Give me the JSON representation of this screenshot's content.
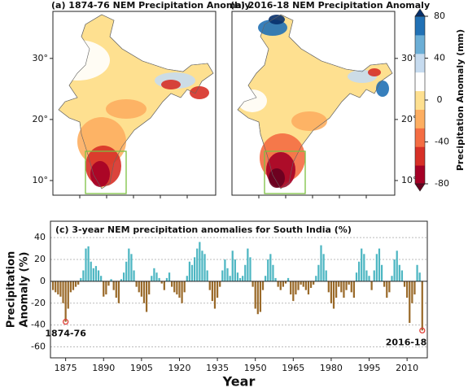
{
  "chart_data": [
    {
      "type": "map",
      "title": "(a) 1874-76 NEM Precipitation Anomaly",
      "ylim": [
        7.6,
        37.7
      ],
      "ytick_side": "left",
      "yticks": [
        {
          "value": 10,
          "label": "10°"
        },
        {
          "value": 20,
          "label": "20°"
        },
        {
          "value": 30,
          "label": "30°"
        }
      ]
    },
    {
      "type": "map",
      "title": "(b) 2016-18 NEM Precipitation Anomaly",
      "ylim": [
        7.6,
        37.7
      ],
      "ytick_side": "right",
      "yticks": [
        {
          "value": 10,
          "label": "10°"
        },
        {
          "value": 20,
          "label": "20°"
        },
        {
          "value": 30,
          "label": "30°"
        }
      ]
    },
    {
      "type": "colorbar",
      "label": "Precipitation Anomaly (mm)",
      "ylim": [
        -80,
        80
      ],
      "yticks": [
        -80,
        -40,
        0,
        40,
        80
      ],
      "colors": [
        "#67001f",
        "#a50026",
        "#d73027",
        "#f46d43",
        "#fdae61",
        "#fee090",
        "#ffffff",
        "#c6dbef",
        "#6baed6",
        "#2171b5",
        "#08306b"
      ]
    },
    {
      "type": "bar",
      "title": "(c) 3-year NEM precipitation anomalies for South India (%)",
      "ylabel": [
        "Precipitation",
        "Anomaly (%)"
      ],
      "xlabel": "Year",
      "positive_color": "#4db6c2",
      "negative_color": "#9a6a2a",
      "marker_color": "#e0413a",
      "grid": true,
      "xlim": [
        1869,
        2018
      ],
      "xticks": [
        1875,
        1890,
        1905,
        1920,
        1935,
        1950,
        1965,
        1980,
        1995,
        2010
      ],
      "ylim": [
        -70,
        55
      ],
      "yticks": [
        -60,
        -40,
        -20,
        0,
        20,
        40
      ],
      "x": [
        1870,
        1871,
        1872,
        1873,
        1874,
        1875,
        1876,
        1877,
        1878,
        1879,
        1880,
        1881,
        1882,
        1883,
        1884,
        1885,
        1886,
        1887,
        1888,
        1889,
        1890,
        1891,
        1892,
        1893,
        1894,
        1895,
        1896,
        1897,
        1898,
        1899,
        1900,
        1901,
        1902,
        1903,
        1904,
        1905,
        1906,
        1907,
        1908,
        1909,
        1910,
        1911,
        1912,
        1913,
        1914,
        1915,
        1916,
        1917,
        1918,
        1919,
        1920,
        1921,
        1922,
        1923,
        1924,
        1925,
        1926,
        1927,
        1928,
        1929,
        1930,
        1931,
        1932,
        1933,
        1934,
        1935,
        1936,
        1937,
        1938,
        1939,
        1940,
        1941,
        1942,
        1943,
        1944,
        1945,
        1946,
        1947,
        1948,
        1949,
        1950,
        1951,
        1952,
        1953,
        1954,
        1955,
        1956,
        1957,
        1958,
        1959,
        1960,
        1961,
        1962,
        1963,
        1964,
        1965,
        1966,
        1967,
        1968,
        1969,
        1970,
        1971,
        1972,
        1973,
        1974,
        1975,
        1976,
        1977,
        1978,
        1979,
        1980,
        1981,
        1982,
        1983,
        1984,
        1985,
        1986,
        1987,
        1988,
        1989,
        1990,
        1991,
        1992,
        1993,
        1994,
        1995,
        1996,
        1997,
        1998,
        1999,
        2000,
        2001,
        2002,
        2003,
        2004,
        2005,
        2006,
        2007,
        2008,
        2009,
        2010,
        2011,
        2012,
        2013,
        2014,
        2015,
        2016
      ],
      "values": [
        -8,
        -10,
        -12,
        -14,
        -20,
        -37,
        -25,
        -10,
        -8,
        -5,
        -3,
        3,
        10,
        30,
        32,
        18,
        12,
        14,
        10,
        5,
        -14,
        -12,
        -4,
        2,
        -8,
        -15,
        -20,
        2,
        8,
        18,
        30,
        25,
        10,
        -5,
        -10,
        -14,
        -20,
        -28,
        -12,
        5,
        12,
        8,
        3,
        -2,
        -8,
        3,
        8,
        -5,
        -10,
        -12,
        -15,
        -20,
        -10,
        5,
        18,
        15,
        22,
        30,
        36,
        28,
        25,
        10,
        -8,
        -18,
        -25,
        -15,
        -5,
        10,
        20,
        12,
        5,
        28,
        20,
        8,
        3,
        5,
        15,
        30,
        22,
        -5,
        -25,
        -30,
        -28,
        -8,
        5,
        20,
        25,
        15,
        3,
        -5,
        -8,
        -5,
        -2,
        3,
        -12,
        -18,
        -12,
        -8,
        -3,
        -5,
        -8,
        -12,
        -6,
        -3,
        5,
        15,
        33,
        25,
        10,
        -10,
        -20,
        -25,
        -15,
        -5,
        -10,
        -15,
        -8,
        -3,
        -10,
        -15,
        8,
        18,
        30,
        25,
        10,
        5,
        -8,
        10,
        25,
        30,
        15,
        -5,
        -15,
        -10,
        5,
        20,
        28,
        15,
        10,
        -5,
        -15,
        -38,
        -20,
        -12,
        15,
        8,
        -45
      ],
      "annotations": [
        {
          "text": "1874-76",
          "x": 1875
        },
        {
          "text": "2016-18",
          "x": 2016
        }
      ]
    }
  ]
}
